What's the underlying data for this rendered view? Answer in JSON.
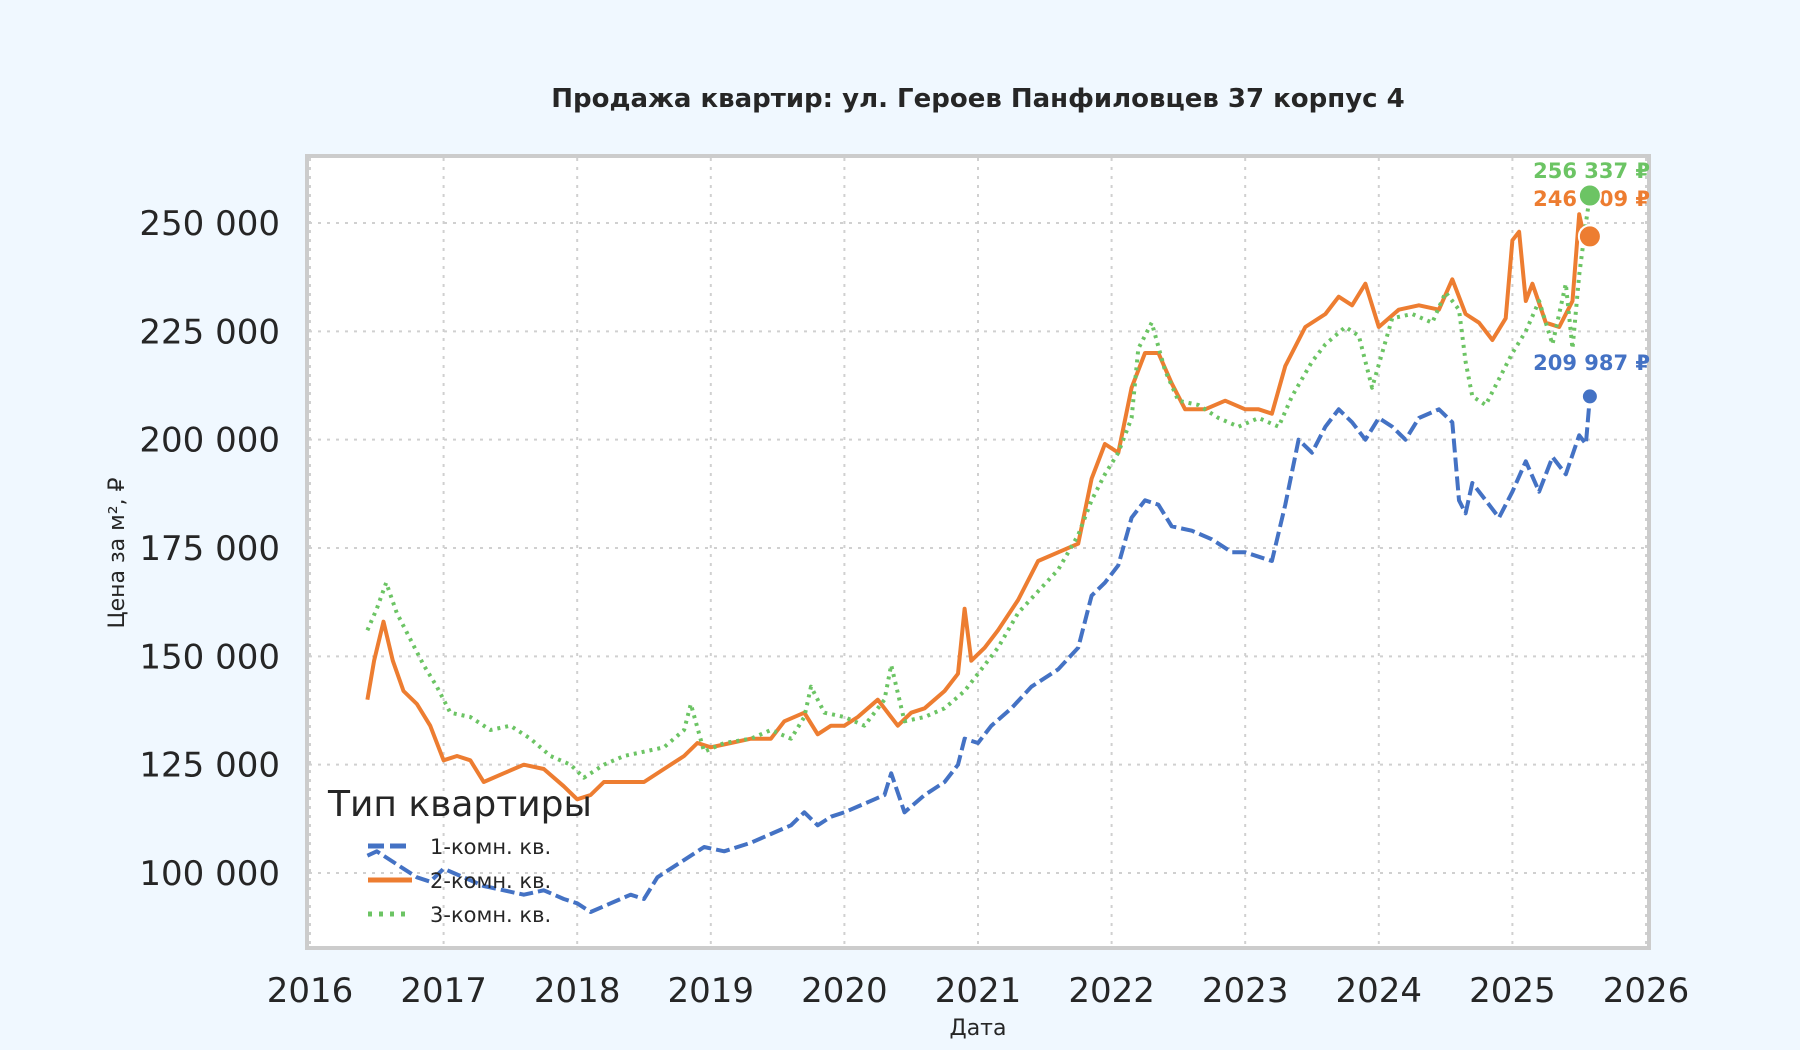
{
  "chart_data": {
    "type": "line",
    "title": "Продажа квартир: ул. Героев Панфиловцев 37 корпус 4",
    "xlabel": "Дата",
    "ylabel": "Цена за м², ₽",
    "xlim": [
      2016,
      2026
    ],
    "ylim": [
      85000,
      266000
    ],
    "x_ticks": [
      "2016",
      "2017",
      "2018",
      "2019",
      "2020",
      "2021",
      "2022",
      "2023",
      "2024",
      "2025",
      "2026"
    ],
    "y_ticks": [
      {
        "value": 100000,
        "label": "100 000"
      },
      {
        "value": 125000,
        "label": "125 000"
      },
      {
        "value": 150000,
        "label": "150 000"
      },
      {
        "value": 175000,
        "label": "175 000"
      },
      {
        "value": 200000,
        "label": "200 000"
      },
      {
        "value": 225000,
        "label": "225 000"
      },
      {
        "value": 250000,
        "label": "250 000"
      }
    ],
    "grid": true,
    "legend": {
      "title": "Тип квартиры",
      "position": "lower left"
    },
    "series": [
      {
        "name": "1-комн. кв.",
        "color": "#4472c4",
        "style": "dashed",
        "x": [
          2016.43,
          2016.5,
          2016.6,
          2016.7,
          2016.8,
          2016.9,
          2017.0,
          2017.15,
          2017.3,
          2017.45,
          2017.6,
          2017.75,
          2017.9,
          2018.0,
          2018.1,
          2018.25,
          2018.4,
          2018.5,
          2018.6,
          2018.75,
          2018.85,
          2018.95,
          2019.1,
          2019.3,
          2019.45,
          2019.6,
          2019.7,
          2019.8,
          2019.9,
          2020.0,
          2020.15,
          2020.3,
          2020.35,
          2020.45,
          2020.6,
          2020.75,
          2020.85,
          2020.9,
          2021.0,
          2021.1,
          2021.25,
          2021.4,
          2021.6,
          2021.75,
          2021.85,
          2021.95,
          2022.05,
          2022.15,
          2022.25,
          2022.35,
          2022.45,
          2022.6,
          2022.75,
          2022.9,
          2023.0,
          2023.1,
          2023.2,
          2023.3,
          2023.4,
          2023.5,
          2023.6,
          2023.7,
          2023.8,
          2023.9,
          2024.0,
          2024.1,
          2024.2,
          2024.3,
          2024.45,
          2024.55,
          2024.6,
          2024.65,
          2024.7,
          2024.8,
          2024.9,
          2025.0,
          2025.1,
          2025.2,
          2025.3,
          2025.4,
          2025.5,
          2025.55,
          2025.58
        ],
        "y": [
          104000,
          105000,
          103000,
          101000,
          99000,
          98000,
          101000,
          99000,
          97000,
          96000,
          95000,
          96000,
          94000,
          93000,
          91000,
          93000,
          95000,
          94000,
          99000,
          102000,
          104000,
          106000,
          105000,
          107000,
          109000,
          111000,
          114000,
          111000,
          113000,
          114000,
          116000,
          118000,
          123000,
          114000,
          118000,
          121000,
          125000,
          131000,
          130000,
          134000,
          138000,
          143000,
          147000,
          152000,
          164000,
          167000,
          171000,
          182000,
          186000,
          185000,
          180000,
          179000,
          177000,
          174000,
          174000,
          173000,
          172000,
          185000,
          200000,
          197000,
          203000,
          207000,
          204000,
          200000,
          205000,
          203000,
          200000,
          205000,
          207000,
          204000,
          186000,
          183000,
          190000,
          186000,
          182000,
          188000,
          195000,
          188000,
          196000,
          192000,
          201000,
          199000,
          209987
        ]
      },
      {
        "name": "2-комн. кв.",
        "color": "#ed7d31",
        "style": "solid",
        "x": [
          2016.43,
          2016.48,
          2016.55,
          2016.62,
          2016.7,
          2016.8,
          2016.9,
          2017.0,
          2017.1,
          2017.2,
          2017.3,
          2017.45,
          2017.6,
          2017.75,
          2017.9,
          2018.0,
          2018.1,
          2018.2,
          2018.35,
          2018.5,
          2018.65,
          2018.8,
          2018.9,
          2019.0,
          2019.15,
          2019.3,
          2019.45,
          2019.55,
          2019.7,
          2019.8,
          2019.9,
          2020.0,
          2020.1,
          2020.25,
          2020.4,
          2020.5,
          2020.6,
          2020.75,
          2020.85,
          2020.9,
          2020.95,
          2021.05,
          2021.15,
          2021.3,
          2021.45,
          2021.6,
          2021.75,
          2021.85,
          2021.95,
          2022.05,
          2022.15,
          2022.25,
          2022.35,
          2022.45,
          2022.55,
          2022.7,
          2022.85,
          2023.0,
          2023.1,
          2023.2,
          2023.3,
          2023.45,
          2023.6,
          2023.7,
          2023.8,
          2023.9,
          2024.0,
          2024.15,
          2024.3,
          2024.45,
          2024.55,
          2024.65,
          2024.75,
          2024.85,
          2024.95,
          2025.0,
          2025.05,
          2025.1,
          2025.15,
          2025.25,
          2025.35,
          2025.45,
          2025.5,
          2025.55,
          2025.58
        ],
        "y": [
          140000,
          149000,
          158000,
          149000,
          142000,
          139000,
          134000,
          126000,
          127000,
          126000,
          121000,
          123000,
          125000,
          124000,
          120000,
          117000,
          118000,
          121000,
          121000,
          121000,
          124000,
          127000,
          130000,
          129000,
          130000,
          131000,
          131000,
          135000,
          137000,
          132000,
          134000,
          134000,
          136000,
          140000,
          134000,
          137000,
          138000,
          142000,
          146000,
          161000,
          149000,
          152000,
          156000,
          163000,
          172000,
          174000,
          176000,
          191000,
          199000,
          197000,
          212000,
          220000,
          220000,
          213000,
          207000,
          207000,
          209000,
          207000,
          207000,
          206000,
          217000,
          226000,
          229000,
          233000,
          231000,
          236000,
          226000,
          230000,
          231000,
          230000,
          237000,
          229000,
          227000,
          223000,
          228000,
          246000,
          248000,
          232000,
          236000,
          227000,
          226000,
          232000,
          252000,
          245000,
          246909
        ]
      },
      {
        "name": "3-комн. кв.",
        "color": "#6cc464",
        "style": "dotted",
        "x": [
          2016.43,
          2016.5,
          2016.57,
          2016.65,
          2016.75,
          2016.85,
          2016.95,
          2017.05,
          2017.2,
          2017.35,
          2017.5,
          2017.65,
          2017.8,
          2017.95,
          2018.05,
          2018.2,
          2018.35,
          2018.5,
          2018.65,
          2018.8,
          2018.85,
          2018.95,
          2019.1,
          2019.3,
          2019.45,
          2019.6,
          2019.7,
          2019.75,
          2019.85,
          2020.0,
          2020.15,
          2020.3,
          2020.35,
          2020.45,
          2020.6,
          2020.75,
          2020.9,
          2021.0,
          2021.15,
          2021.3,
          2021.45,
          2021.6,
          2021.75,
          2021.85,
          2021.95,
          2022.05,
          2022.15,
          2022.2,
          2022.3,
          2022.4,
          2022.5,
          2022.65,
          2022.8,
          2022.95,
          2023.1,
          2023.25,
          2023.35,
          2023.5,
          2023.6,
          2023.75,
          2023.85,
          2023.95,
          2024.1,
          2024.25,
          2024.4,
          2024.5,
          2024.6,
          2024.65,
          2024.7,
          2024.8,
          2024.9,
          2025.0,
          2025.1,
          2025.2,
          2025.3,
          2025.4,
          2025.45,
          2025.5,
          2025.55,
          2025.58
        ],
        "y": [
          156000,
          161000,
          167000,
          160000,
          154000,
          148000,
          143000,
          137000,
          136000,
          133000,
          134000,
          131000,
          127000,
          125000,
          122000,
          125000,
          127000,
          128000,
          129000,
          133000,
          139000,
          128000,
          130000,
          131000,
          133000,
          131000,
          136000,
          143000,
          137000,
          136000,
          134000,
          140000,
          148000,
          135000,
          136000,
          138000,
          142000,
          146000,
          152000,
          160000,
          165000,
          170000,
          178000,
          186000,
          192000,
          197000,
          205000,
          221000,
          227000,
          216000,
          209000,
          208000,
          205000,
          203000,
          205000,
          203000,
          210000,
          218000,
          222000,
          226000,
          224000,
          212000,
          228000,
          229000,
          227000,
          234000,
          230000,
          218000,
          210000,
          208000,
          214000,
          220000,
          225000,
          232000,
          222000,
          236000,
          221000,
          238000,
          250000,
          256337
        ]
      }
    ],
    "annotations": [
      {
        "series": "3-комн. кв.",
        "x": 2025.58,
        "y": 256337,
        "label": "256 337 ₽",
        "color": "#6cc464"
      },
      {
        "series": "2-комн. кв.",
        "x": 2025.58,
        "y": 246909,
        "label": "246 909 ₽",
        "color": "#ed7d31"
      },
      {
        "series": "1-комн. кв.",
        "x": 2025.58,
        "y": 209987,
        "label": "209 987 ₽",
        "color": "#4472c4"
      }
    ]
  }
}
